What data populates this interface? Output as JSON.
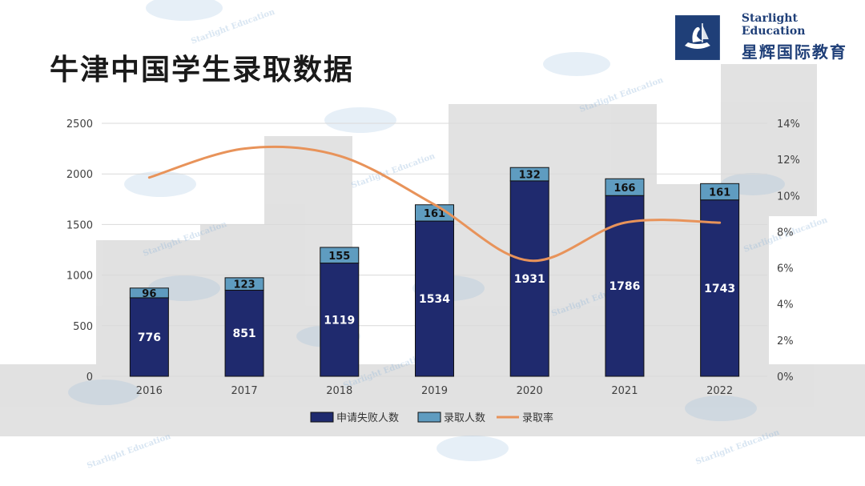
{
  "page": {
    "title": "牛津中国学生录取数据",
    "logo": {
      "en": "Starlight Education",
      "cn": "星辉国际教育"
    },
    "watermark": {
      "en": "Starlight Education",
      "cn": "星辉国际教育"
    }
  },
  "colors": {
    "failed": "#1f2a6e",
    "admitted": "#5f9cc0",
    "rate": "#e8935a",
    "grid": "#d9d9d9",
    "axis_text": "#404040",
    "logo_bg": "#1f3f78"
  },
  "chart_data": {
    "type": "bar",
    "stacked": true,
    "categories": [
      "2016",
      "2017",
      "2018",
      "2019",
      "2020",
      "2021",
      "2022"
    ],
    "series": [
      {
        "name": "申请失败人数",
        "values": [
          776,
          851,
          1119,
          1534,
          1931,
          1786,
          1743
        ],
        "axis": "left"
      },
      {
        "name": "录取人数",
        "values": [
          96,
          123,
          155,
          161,
          132,
          166,
          161
        ],
        "axis": "left"
      },
      {
        "name": "录取率",
        "type": "line",
        "axis": "right",
        "values": [
          11.0,
          12.6,
          12.2,
          9.5,
          6.4,
          8.5,
          8.5
        ]
      }
    ],
    "ylim_left": [
      0,
      2500
    ],
    "yticks_left": [
      0,
      500,
      1000,
      1500,
      2000,
      2500
    ],
    "ylim_right": [
      0,
      14
    ],
    "yticks_right": [
      "0%",
      "2%",
      "4%",
      "6%",
      "8%",
      "10%",
      "12%",
      "14%"
    ],
    "grid": true,
    "legend_position": "bottom"
  }
}
